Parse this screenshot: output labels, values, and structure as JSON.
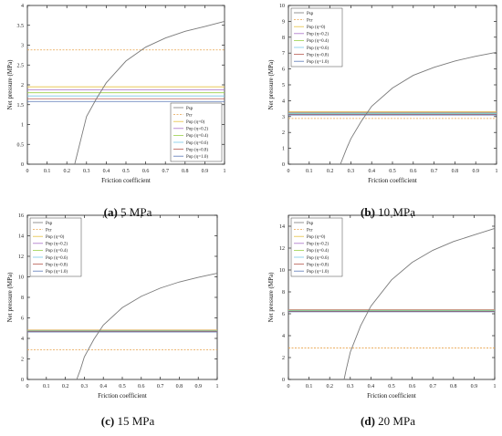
{
  "figure": {
    "captions": [
      {
        "letter": "(a)",
        "text": " 5 MPa"
      },
      {
        "letter": "(b)",
        "text": " 10 MPa"
      },
      {
        "letter": "(c)",
        "text": " 15 MPa"
      },
      {
        "letter": "(d)",
        "text": " 20 MPa"
      }
    ]
  },
  "colors": {
    "psp": "#7a7a7a",
    "pcr": "#e8a24a",
    "pop": [
      "#e6c040",
      "#a872c8",
      "#9ad04a",
      "#78c8e8",
      "#b85a50",
      "#5a78b8"
    ]
  },
  "chart_data": [
    {
      "type": "line",
      "xlabel": "Friction coefficient",
      "ylabel": "Net pressure (MPa)",
      "xlim": [
        0,
        1
      ],
      "ylim": [
        0,
        4
      ],
      "xticks": [
        "0",
        "0.1",
        "0.2",
        "0.3",
        "0.4",
        "0.5",
        "0.6",
        "0.7",
        "0.8",
        "0.9",
        "1"
      ],
      "yticks": [
        "0",
        "0.5",
        "1",
        "1.5",
        "2",
        "2.5",
        "3",
        "3.5",
        "4"
      ],
      "legend_position": "bottom-right",
      "grid": false,
      "series": [
        {
          "name": "Psp",
          "style": "solid",
          "x": [
            0.24,
            0.28,
            0.3,
            0.35,
            0.4,
            0.5,
            0.6,
            0.7,
            0.8,
            0.9,
            1.0
          ],
          "y": [
            0,
            0.8,
            1.2,
            1.65,
            2.05,
            2.6,
            2.95,
            3.18,
            3.35,
            3.47,
            3.6
          ]
        },
        {
          "name": "Pcr",
          "style": "dashed",
          "x": [
            0,
            1
          ],
          "y": [
            2.88,
            2.88
          ]
        },
        {
          "name": "Pop (η=0)",
          "style": "solid",
          "x": [
            0,
            1
          ],
          "y": [
            1.95,
            1.95
          ]
        },
        {
          "name": "Pop (η=0.2)",
          "style": "solid",
          "x": [
            0,
            1
          ],
          "y": [
            1.87,
            1.87
          ]
        },
        {
          "name": "Pop (η=0.4)",
          "style": "solid",
          "x": [
            0,
            1
          ],
          "y": [
            1.8,
            1.8
          ]
        },
        {
          "name": "Pop (η=0.6)",
          "style": "solid",
          "x": [
            0,
            1
          ],
          "y": [
            1.72,
            1.72
          ]
        },
        {
          "name": "Pop (η=0.8)",
          "style": "solid",
          "x": [
            0,
            1
          ],
          "y": [
            1.65,
            1.65
          ]
        },
        {
          "name": "Pop (η=1.0)",
          "style": "solid",
          "x": [
            0,
            1
          ],
          "y": [
            1.58,
            1.58
          ]
        }
      ]
    },
    {
      "type": "line",
      "xlabel": "Friction coefficient",
      "ylabel": "Net pressure (MPa)",
      "xlim": [
        0,
        1
      ],
      "ylim": [
        0,
        10
      ],
      "xticks": [
        "0",
        "0.1",
        "0.2",
        "0.3",
        "0.4",
        "0.5",
        "0.6",
        "0.7",
        "0.8",
        "0.9",
        "1"
      ],
      "yticks": [
        "0",
        "1",
        "2",
        "3",
        "4",
        "5",
        "6",
        "7",
        "8",
        "9",
        "10"
      ],
      "legend_position": "top-left",
      "grid": false,
      "series": [
        {
          "name": "Psp",
          "style": "solid",
          "x": [
            0.25,
            0.28,
            0.3,
            0.35,
            0.4,
            0.5,
            0.6,
            0.7,
            0.8,
            0.9,
            1.0
          ],
          "y": [
            0,
            1.0,
            1.6,
            2.7,
            3.65,
            4.8,
            5.6,
            6.1,
            6.5,
            6.8,
            7.05
          ]
        },
        {
          "name": "Pcr",
          "style": "dashed",
          "x": [
            0,
            1
          ],
          "y": [
            2.88,
            2.88
          ]
        },
        {
          "name": "Pop (η=0)",
          "style": "solid",
          "x": [
            0,
            1
          ],
          "y": [
            3.3,
            3.3
          ]
        },
        {
          "name": "Pop (η=0.2)",
          "style": "solid",
          "x": [
            0,
            1
          ],
          "y": [
            3.26,
            3.26
          ]
        },
        {
          "name": "Pop (η=0.4)",
          "style": "solid",
          "x": [
            0,
            1
          ],
          "y": [
            3.22,
            3.22
          ]
        },
        {
          "name": "Pop (η=0.6)",
          "style": "solid",
          "x": [
            0,
            1
          ],
          "y": [
            3.18,
            3.18
          ]
        },
        {
          "name": "Pop (η=0.8)",
          "style": "solid",
          "x": [
            0,
            1
          ],
          "y": [
            3.14,
            3.14
          ]
        },
        {
          "name": "Pop (η=1.0)",
          "style": "solid",
          "x": [
            0,
            1
          ],
          "y": [
            3.1,
            3.1
          ]
        }
      ]
    },
    {
      "type": "line",
      "xlabel": "Friction coefficient",
      "ylabel": "Net pressure (MPa)",
      "xlim": [
        0,
        1
      ],
      "ylim": [
        0,
        16
      ],
      "xticks": [
        "0",
        "0.1",
        "0.2",
        "0.3",
        "0.4",
        "0.5",
        "0.6",
        "0.7",
        "0.8",
        "0.9",
        "1"
      ],
      "yticks": [
        "0",
        "2",
        "4",
        "6",
        "8",
        "10",
        "12",
        "14",
        "16"
      ],
      "legend_position": "top-left",
      "grid": false,
      "series": [
        {
          "name": "Psp",
          "style": "solid",
          "x": [
            0.26,
            0.28,
            0.3,
            0.35,
            0.4,
            0.5,
            0.6,
            0.7,
            0.8,
            0.9,
            1.0
          ],
          "y": [
            0,
            1.0,
            2.2,
            3.9,
            5.3,
            7.0,
            8.1,
            8.9,
            9.5,
            9.95,
            10.35
          ]
        },
        {
          "name": "Pcr",
          "style": "dashed",
          "x": [
            0,
            1
          ],
          "y": [
            2.88,
            2.88
          ]
        },
        {
          "name": "Pop (η=0)",
          "style": "solid",
          "x": [
            0,
            1
          ],
          "y": [
            4.82,
            4.82
          ]
        },
        {
          "name": "Pop (η=0.2)",
          "style": "solid",
          "x": [
            0,
            1
          ],
          "y": [
            4.78,
            4.78
          ]
        },
        {
          "name": "Pop (η=0.4)",
          "style": "solid",
          "x": [
            0,
            1
          ],
          "y": [
            4.74,
            4.74
          ]
        },
        {
          "name": "Pop (η=0.6)",
          "style": "solid",
          "x": [
            0,
            1
          ],
          "y": [
            4.7,
            4.7
          ]
        },
        {
          "name": "Pop (η=0.8)",
          "style": "solid",
          "x": [
            0,
            1
          ],
          "y": [
            4.66,
            4.66
          ]
        },
        {
          "name": "Pop (η=1.0)",
          "style": "solid",
          "x": [
            0,
            1
          ],
          "y": [
            4.62,
            4.62
          ]
        }
      ]
    },
    {
      "type": "line",
      "xlabel": "Friction coefficient",
      "ylabel": "Net pressure (MPa)",
      "xlim": [
        0,
        1
      ],
      "ylim": [
        0,
        15
      ],
      "xticks": [
        "0",
        "0.1",
        "0.2",
        "0.3",
        "0.4",
        "0.5",
        "0.6",
        "0.7",
        "0.8",
        "0.9",
        "1"
      ],
      "yticks": [
        "0",
        "2",
        "4",
        "6",
        "8",
        "10",
        "12",
        "14"
      ],
      "legend_position": "top-left",
      "grid": false,
      "series": [
        {
          "name": "Psp",
          "style": "solid",
          "x": [
            0.27,
            0.28,
            0.3,
            0.35,
            0.4,
            0.5,
            0.6,
            0.7,
            0.8,
            0.9,
            1.0
          ],
          "y": [
            0,
            0.9,
            2.5,
            4.9,
            6.7,
            9.1,
            10.7,
            11.8,
            12.6,
            13.2,
            13.8
          ]
        },
        {
          "name": "Pcr",
          "style": "dashed",
          "x": [
            0,
            1
          ],
          "y": [
            2.88,
            2.88
          ]
        },
        {
          "name": "Pop (η=0)",
          "style": "solid",
          "x": [
            0,
            1
          ],
          "y": [
            6.38,
            6.38
          ]
        },
        {
          "name": "Pop (η=0.2)",
          "style": "solid",
          "x": [
            0,
            1
          ],
          "y": [
            6.34,
            6.34
          ]
        },
        {
          "name": "Pop (η=0.4)",
          "style": "solid",
          "x": [
            0,
            1
          ],
          "y": [
            6.3,
            6.3
          ]
        },
        {
          "name": "Pop (η=0.6)",
          "style": "solid",
          "x": [
            0,
            1
          ],
          "y": [
            6.26,
            6.26
          ]
        },
        {
          "name": "Pop (η=0.8)",
          "style": "solid",
          "x": [
            0,
            1
          ],
          "y": [
            6.22,
            6.22
          ]
        },
        {
          "name": "Pop (η=1.0)",
          "style": "solid",
          "x": [
            0,
            1
          ],
          "y": [
            6.18,
            6.18
          ]
        }
      ]
    }
  ]
}
